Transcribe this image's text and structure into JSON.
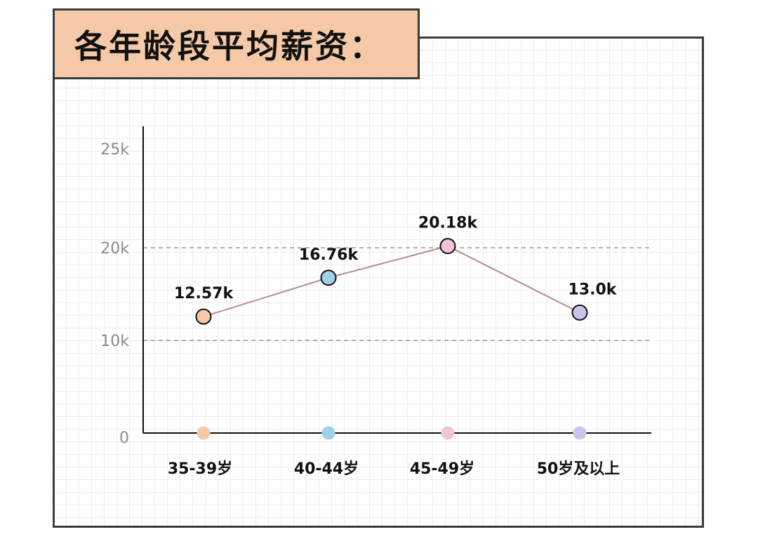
{
  "title": "各年龄段平均薪资：",
  "chart_data": {
    "type": "line",
    "title": "各年龄段平均薪资：",
    "xlabel": "",
    "ylabel": "",
    "categories": [
      "35-39岁",
      "40-44岁",
      "45-49岁",
      "50岁及以上"
    ],
    "values": [
      12.57,
      16.76,
      20.18,
      13.0
    ],
    "data_labels": [
      "12.57k",
      "16.76k",
      "20.18k",
      "13.0k"
    ],
    "point_colors": [
      "#f5c9a8",
      "#9fd0e3",
      "#f2c4d8",
      "#c9c6ee"
    ],
    "line_color": "#b88a8f",
    "ylim": [
      0,
      25
    ],
    "yticks": [
      {
        "value": 0,
        "label": "0"
      },
      {
        "value": 10,
        "label": "10k"
      },
      {
        "value": 20,
        "label": "20k"
      },
      {
        "value": 25,
        "label": "25k"
      }
    ],
    "dashed_gridlines": [
      10,
      20
    ],
    "grid": true,
    "legend": "none"
  }
}
